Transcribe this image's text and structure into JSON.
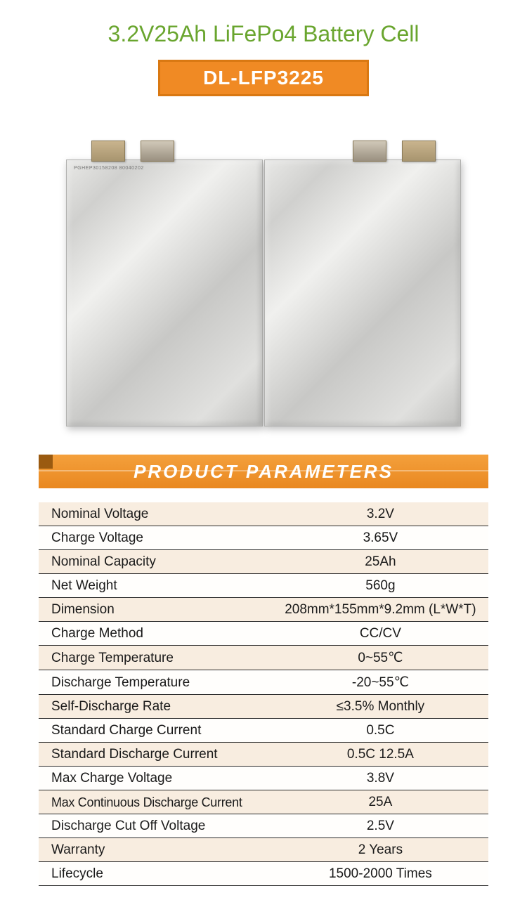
{
  "header": {
    "title": "3.2V25Ah LiFePo4 Battery Cell",
    "title_color": "#69a52e",
    "model": "DL-LFP3225",
    "badge_bg": "#f08a24",
    "badge_border": "#d97812"
  },
  "product_image": {
    "type": "photo-placeholder",
    "description": "two silver pouch battery cells side by side",
    "cell_count": 2,
    "cell_color_gradient": [
      "#e8e8e6",
      "#c0c0be"
    ],
    "tab_positions": [
      "left-outer",
      "left-inner",
      "right-inner",
      "right-outer"
    ],
    "cell_marking": "PGHEP30158208  80040202"
  },
  "section": {
    "label": "PRODUCT PARAMETERS",
    "bg_gradient": [
      "#f4a03c",
      "#e98820"
    ]
  },
  "params": {
    "row_odd_bg": "#f8ede0",
    "row_even_bg": "#fffefc",
    "border_color": "#2a2a2a",
    "label_fontsize": 19,
    "rows": [
      {
        "label": "Nominal Voltage",
        "value": "3.2V"
      },
      {
        "label": "Charge Voltage",
        "value": "3.65V"
      },
      {
        "label": "Nominal Capacity",
        "value": "25Ah"
      },
      {
        "label": "Net Weight",
        "value": "560g"
      },
      {
        "label": "Dimension",
        "value": "208mm*155mm*9.2mm (L*W*T)"
      },
      {
        "label": "Charge Method",
        "value": "CC/CV"
      },
      {
        "label": "Charge Temperature",
        "value": "0~55℃"
      },
      {
        "label": "Discharge Temperature",
        "value": "-20~55℃"
      },
      {
        "label": "Self-Discharge Rate",
        "value": "≤3.5% Monthly"
      },
      {
        "label": "Standard Charge Current",
        "value": "0.5C"
      },
      {
        "label": "Standard Discharge Current",
        "value": "0.5C 12.5A"
      },
      {
        "label": "Max Charge Voltage",
        "value": "3.8V"
      },
      {
        "label": "Max Continuous Discharge Current",
        "value": "25A"
      },
      {
        "label": "Discharge Cut Off Voltage",
        "value": "2.5V"
      },
      {
        "label": "Warranty",
        "value": "2 Years"
      },
      {
        "label": "Lifecycle",
        "value": "1500-2000 Times"
      }
    ]
  }
}
